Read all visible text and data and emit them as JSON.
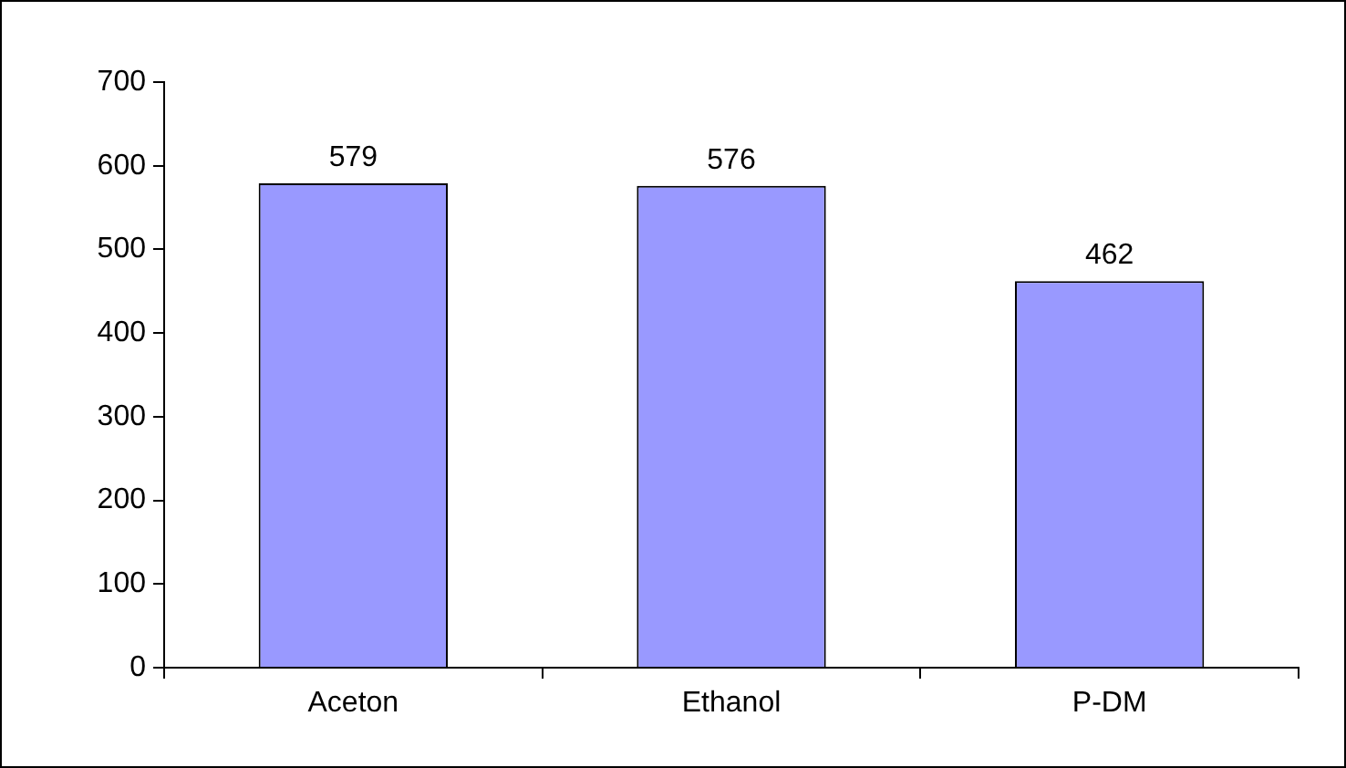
{
  "chart_data": {
    "type": "bar",
    "categories": [
      "Aceton",
      "Ethanol",
      "P-DM"
    ],
    "values": [
      579,
      576,
      462
    ],
    "color": "#9999ff",
    "ylim": [
      0,
      700
    ],
    "yticks": [
      0,
      100,
      200,
      300,
      400,
      500,
      600,
      700
    ],
    "grid": false,
    "legend": false,
    "data_labels": true
  }
}
